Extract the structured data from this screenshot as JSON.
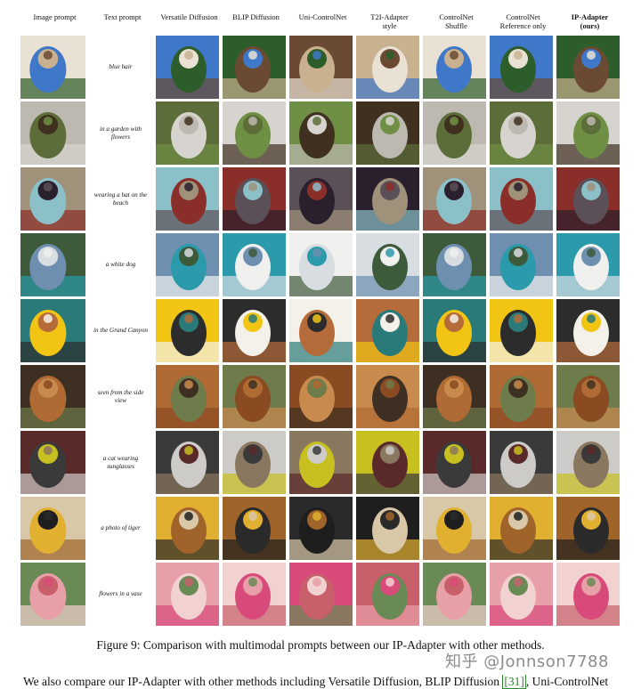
{
  "figure": {
    "headers": [
      {
        "label": "Image prompt",
        "bold": false
      },
      {
        "label": "Text prompt",
        "bold": false
      },
      {
        "label": "Versatile Diffusion",
        "bold": false
      },
      {
        "label": "BLIP Diffusion",
        "bold": false
      },
      {
        "label": "Uni-ControlNet",
        "bold": false
      },
      {
        "label": "T2I-Adapter\nstyle",
        "bold": false
      },
      {
        "label": "ControlNet\nShuffle",
        "bold": false
      },
      {
        "label": "ControlNet\nReference only",
        "bold": false
      },
      {
        "label": "IP-Adapter\n(ours)",
        "bold": true
      }
    ],
    "rows": [
      {
        "text_prompt": "blue hair",
        "palette": [
          "#e9e2d4",
          "#6b4a33",
          "#3f78c9",
          "#c9b18f",
          "#2d5d2a"
        ]
      },
      {
        "text_prompt": "in a garden with flowers",
        "palette": [
          "#d7d4cf",
          "#bdb8b0",
          "#6f8f45",
          "#5c6d3a",
          "#3f3020"
        ]
      },
      {
        "text_prompt": "wearing a hat on the beach",
        "palette": [
          "#2a1f2c",
          "#8a2e2a",
          "#a0927a",
          "#5b5057",
          "#8cc0c9"
        ]
      },
      {
        "text_prompt": "a white dog",
        "palette": [
          "#6e8fb0",
          "#d8dde2",
          "#2b9aaa",
          "#3d5a3a",
          "#f0f0ee"
        ]
      },
      {
        "text_prompt": "in the Grand Canyon",
        "palette": [
          "#f4f1ea",
          "#f2c515",
          "#b56b3a",
          "#2c2c2c",
          "#2a7a7a"
        ]
      },
      {
        "text_prompt": "seen from the side view",
        "palette": [
          "#3d3022",
          "#8a4a22",
          "#b06a33",
          "#c98a4d",
          "#6e7b4a"
        ]
      },
      {
        "text_prompt": "a cat wearing sunglasses",
        "palette": [
          "#cdcbc8",
          "#5a2a2a",
          "#8a7760",
          "#3a3a3a",
          "#c7c020"
        ]
      },
      {
        "text_prompt": "a photo of tiger",
        "palette": [
          "#1e1e1e",
          "#a0642a",
          "#d8c8a8",
          "#2a2a2a",
          "#e2b030"
        ]
      },
      {
        "text_prompt": "flowers in a vase",
        "palette": [
          "#e8a0a8",
          "#c8606c",
          "#f2d2d0",
          "#6a8a55",
          "#d84a7a"
        ]
      }
    ]
  },
  "caption": "Figure 9: Comparison with multimodal prompts between our IP-Adapter with other methods.",
  "body_text": {
    "before": "We also compare our IP-Adapter with other methods including Versatile Diffusion, BLIP Diffusion ",
    "ref": "[31]",
    "after": ", Uni-ControlNet"
  },
  "watermark": "知乎 @Jonnson7788"
}
